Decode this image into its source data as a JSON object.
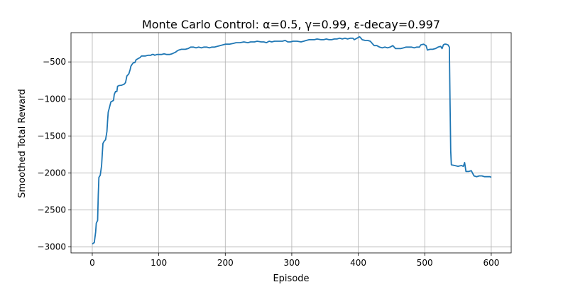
{
  "chart_data": {
    "type": "line",
    "title": "Monte Carlo Control: α=0.5, γ=0.99, ε-decay=0.997",
    "xlabel": "Episode",
    "ylabel": "Smoothed Total Reward",
    "xlim": [
      -32,
      630
    ],
    "ylim": [
      -3080,
      -105
    ],
    "x_ticks": [
      0,
      100,
      200,
      300,
      400,
      500,
      600
    ],
    "y_ticks": [
      -3000,
      -2500,
      -2000,
      -1500,
      -1000,
      -500
    ],
    "x_tick_labels": [
      "0",
      "100",
      "200",
      "300",
      "400",
      "500",
      "600"
    ],
    "y_tick_labels": [
      "−3000",
      "−2500",
      "−2000",
      "−1500",
      "−1000",
      "−500"
    ],
    "grid": true,
    "colors": {
      "series": "#1f77b4",
      "grid": "#b0b0b0",
      "axes": "#000000",
      "background": "#ffffff"
    },
    "series": [
      {
        "points": [
          [
            0,
            -2960
          ],
          [
            3,
            -2940
          ],
          [
            5,
            -2800
          ],
          [
            6,
            -2680
          ],
          [
            8,
            -2640
          ],
          [
            9,
            -2300
          ],
          [
            10,
            -2060
          ],
          [
            12,
            -2030
          ],
          [
            14,
            -1900
          ],
          [
            15,
            -1750
          ],
          [
            16,
            -1600
          ],
          [
            18,
            -1570
          ],
          [
            20,
            -1550
          ],
          [
            22,
            -1440
          ],
          [
            23,
            -1300
          ],
          [
            24,
            -1180
          ],
          [
            26,
            -1110
          ],
          [
            28,
            -1040
          ],
          [
            30,
            -1030
          ],
          [
            32,
            -1020
          ],
          [
            33,
            -940
          ],
          [
            35,
            -900
          ],
          [
            37,
            -900
          ],
          [
            38,
            -830
          ],
          [
            40,
            -820
          ],
          [
            44,
            -815
          ],
          [
            48,
            -800
          ],
          [
            50,
            -780
          ],
          [
            52,
            -690
          ],
          [
            55,
            -660
          ],
          [
            57,
            -600
          ],
          [
            58,
            -560
          ],
          [
            60,
            -530
          ],
          [
            62,
            -510
          ],
          [
            64,
            -510
          ],
          [
            66,
            -470
          ],
          [
            68,
            -460
          ],
          [
            70,
            -450
          ],
          [
            72,
            -440
          ],
          [
            74,
            -420
          ],
          [
            76,
            -420
          ],
          [
            80,
            -420
          ],
          [
            84,
            -410
          ],
          [
            88,
            -410
          ],
          [
            90,
            -400
          ],
          [
            92,
            -400
          ],
          [
            94,
            -410
          ],
          [
            97,
            -400
          ],
          [
            100,
            -400
          ],
          [
            104,
            -400
          ],
          [
            108,
            -390
          ],
          [
            112,
            -400
          ],
          [
            116,
            -400
          ],
          [
            120,
            -390
          ],
          [
            125,
            -370
          ],
          [
            128,
            -350
          ],
          [
            130,
            -340
          ],
          [
            134,
            -330
          ],
          [
            140,
            -330
          ],
          [
            144,
            -320
          ],
          [
            148,
            -300
          ],
          [
            152,
            -300
          ],
          [
            156,
            -310
          ],
          [
            160,
            -300
          ],
          [
            164,
            -310
          ],
          [
            168,
            -300
          ],
          [
            172,
            -300
          ],
          [
            176,
            -310
          ],
          [
            180,
            -300
          ],
          [
            184,
            -300
          ],
          [
            188,
            -290
          ],
          [
            192,
            -280
          ],
          [
            196,
            -270
          ],
          [
            200,
            -260
          ],
          [
            206,
            -260
          ],
          [
            212,
            -250
          ],
          [
            216,
            -240
          ],
          [
            222,
            -240
          ],
          [
            228,
            -230
          ],
          [
            234,
            -240
          ],
          [
            238,
            -230
          ],
          [
            244,
            -230
          ],
          [
            248,
            -220
          ],
          [
            254,
            -230
          ],
          [
            258,
            -230
          ],
          [
            262,
            -240
          ],
          [
            266,
            -220
          ],
          [
            270,
            -230
          ],
          [
            274,
            -220
          ],
          [
            280,
            -220
          ],
          [
            286,
            -220
          ],
          [
            290,
            -210
          ],
          [
            294,
            -230
          ],
          [
            298,
            -230
          ],
          [
            302,
            -220
          ],
          [
            308,
            -220
          ],
          [
            314,
            -230
          ],
          [
            318,
            -220
          ],
          [
            322,
            -210
          ],
          [
            326,
            -200
          ],
          [
            330,
            -200
          ],
          [
            334,
            -200
          ],
          [
            338,
            -190
          ],
          [
            344,
            -200
          ],
          [
            348,
            -200
          ],
          [
            352,
            -190
          ],
          [
            356,
            -200
          ],
          [
            360,
            -200
          ],
          [
            364,
            -190
          ],
          [
            368,
            -190
          ],
          [
            372,
            -180
          ],
          [
            376,
            -190
          ],
          [
            380,
            -180
          ],
          [
            384,
            -190
          ],
          [
            388,
            -180
          ],
          [
            392,
            -180
          ],
          [
            394,
            -200
          ],
          [
            398,
            -180
          ],
          [
            402,
            -160
          ],
          [
            406,
            -200
          ],
          [
            410,
            -210
          ],
          [
            414,
            -210
          ],
          [
            418,
            -220
          ],
          [
            422,
            -260
          ],
          [
            424,
            -280
          ],
          [
            428,
            -280
          ],
          [
            432,
            -300
          ],
          [
            436,
            -310
          ],
          [
            440,
            -300
          ],
          [
            444,
            -310
          ],
          [
            448,
            -300
          ],
          [
            452,
            -280
          ],
          [
            456,
            -320
          ],
          [
            460,
            -320
          ],
          [
            464,
            -320
          ],
          [
            468,
            -310
          ],
          [
            472,
            -300
          ],
          [
            476,
            -300
          ],
          [
            480,
            -300
          ],
          [
            484,
            -310
          ],
          [
            488,
            -300
          ],
          [
            492,
            -300
          ],
          [
            494,
            -270
          ],
          [
            498,
            -260
          ],
          [
            502,
            -280
          ],
          [
            504,
            -340
          ],
          [
            508,
            -330
          ],
          [
            512,
            -330
          ],
          [
            516,
            -320
          ],
          [
            520,
            -300
          ],
          [
            524,
            -290
          ],
          [
            526,
            -320
          ],
          [
            528,
            -270
          ],
          [
            530,
            -260
          ],
          [
            532,
            -260
          ],
          [
            535,
            -270
          ],
          [
            537,
            -300
          ],
          [
            538,
            -1000
          ],
          [
            539,
            -1700
          ],
          [
            540,
            -1890
          ],
          [
            545,
            -1900
          ],
          [
            550,
            -1910
          ],
          [
            555,
            -1900
          ],
          [
            558,
            -1910
          ],
          [
            560,
            -1860
          ],
          [
            562,
            -1980
          ],
          [
            566,
            -1980
          ],
          [
            570,
            -1970
          ],
          [
            574,
            -2040
          ],
          [
            578,
            -2050
          ],
          [
            582,
            -2040
          ],
          [
            586,
            -2040
          ],
          [
            590,
            -2050
          ],
          [
            594,
            -2050
          ],
          [
            598,
            -2050
          ],
          [
            600,
            -2060
          ]
        ]
      }
    ]
  }
}
